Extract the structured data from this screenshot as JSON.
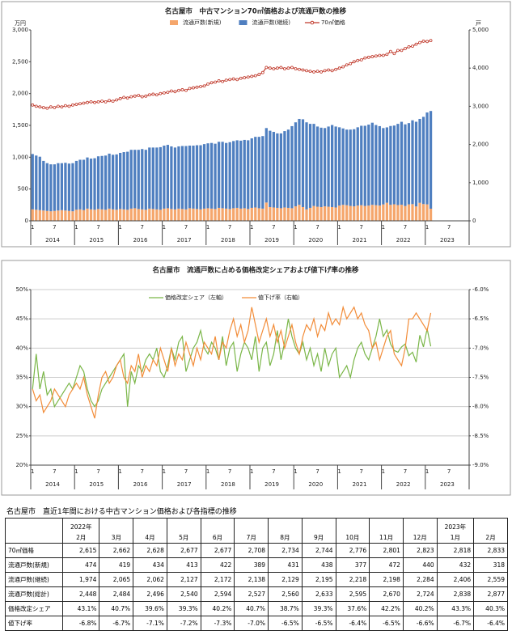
{
  "chart_data": [
    {
      "type": "bar",
      "title": "名古屋市　中古マンション70㎡価格および流通戸数の推移",
      "stacked": true,
      "grid": false,
      "y_label": "万円",
      "y2_label": "戸",
      "categories": [
        "1",
        null,
        null,
        null,
        null,
        null,
        "7",
        null,
        null,
        null,
        null,
        null,
        "1",
        null,
        null,
        null,
        null,
        null,
        "7",
        null,
        null,
        null,
        null,
        null,
        "1",
        null,
        null,
        null,
        null,
        null,
        "7",
        null,
        null,
        null,
        null,
        null,
        "1",
        null,
        null,
        null,
        null,
        null,
        "7",
        null,
        null,
        null,
        null,
        null,
        "1",
        null,
        null,
        null,
        null,
        null,
        "7",
        null,
        null,
        null,
        null,
        null,
        "1",
        null,
        null,
        null,
        null,
        null,
        "7",
        null,
        null,
        null,
        null,
        null,
        "1",
        null,
        null,
        null,
        null,
        null,
        "7",
        null,
        null,
        null,
        null,
        null,
        "1",
        null,
        null,
        null,
        null,
        null,
        "7",
        null,
        null,
        null,
        null,
        null,
        "1",
        null,
        null,
        null,
        null,
        null,
        "7",
        null,
        null,
        null,
        null,
        null,
        "1",
        null,
        null,
        null,
        null,
        null,
        "7",
        null,
        null,
        null,
        null,
        null
      ],
      "year_labels": [
        "2014",
        "2015",
        "2016",
        "2017",
        "2018",
        "2019",
        "2020",
        "2021",
        "2022",
        "2023"
      ],
      "ylim": [
        0,
        3000
      ],
      "yticks": [
        0,
        500,
        {
          "value": 1000,
          "label": "1,000"
        },
        {
          "value": 1500,
          "label": "1,500"
        },
        {
          "value": 2000,
          "label": "2,000"
        },
        {
          "value": 2500,
          "label": "2,500"
        },
        {
          "value": 3000,
          "label": "3,000"
        }
      ],
      "y2lim": [
        0,
        5000
      ],
      "y2ticks": [
        0,
        {
          "value": 1000,
          "label": "1,000"
        },
        {
          "value": 2000,
          "label": "2,000"
        },
        {
          "value": 3000,
          "label": "3,000"
        },
        {
          "value": 4000,
          "label": "4,000"
        },
        {
          "value": 5000,
          "label": "5,000"
        }
      ],
      "series": [
        {
          "name": "流通戸数(新規)",
          "type": "bar",
          "axis": "y2",
          "color": "#f5a66c",
          "values": [
            300,
            290,
            280,
            270,
            260,
            250,
            260,
            270,
            280,
            270,
            260,
            250,
            290,
            300,
            280,
            320,
            300,
            290,
            310,
            300,
            290,
            320,
            300,
            290,
            310,
            300,
            290,
            320,
            330,
            310,
            300,
            290,
            320,
            310,
            300,
            290,
            320,
            330,
            310,
            300,
            320,
            310,
            300,
            330,
            320,
            310,
            300,
            320,
            330,
            320,
            310,
            340,
            330,
            320,
            310,
            330,
            340,
            320,
            330,
            310,
            340,
            350,
            330,
            320,
            480,
            360,
            350,
            340,
            330,
            350,
            340,
            330,
            380,
            420,
            360,
            300,
            340,
            390,
            370,
            360,
            380,
            370,
            360,
            350,
            400,
            420,
            410,
            390,
            380,
            400,
            410,
            390,
            400,
            420,
            410,
            400,
            430,
            474,
            419,
            434,
            413,
            422,
            389,
            431,
            438,
            377,
            472,
            440,
            432,
            318,
            null,
            null,
            null,
            null,
            null,
            null,
            null,
            null,
            null,
            null
          ]
        },
        {
          "name": "流通戸数(継続)",
          "type": "bar",
          "axis": "y2",
          "color": "#4f7fc0",
          "values": [
            1450,
            1420,
            1400,
            1300,
            1250,
            1230,
            1220,
            1240,
            1230,
            1250,
            1240,
            1260,
            1280,
            1300,
            1320,
            1340,
            1330,
            1350,
            1380,
            1400,
            1420,
            1440,
            1430,
            1450,
            1470,
            1500,
            1520,
            1540,
            1530,
            1550,
            1580,
            1570,
            1600,
            1610,
            1620,
            1640,
            1650,
            1660,
            1640,
            1620,
            1630,
            1650,
            1660,
            1640,
            1650,
            1670,
            1680,
            1690,
            1700,
            1720,
            1710,
            1730,
            1740,
            1720,
            1750,
            1760,
            1770,
            1780,
            1790,
            1800,
            1820,
            1850,
            1870,
            1900,
            1950,
            2000,
            1980,
            1950,
            1960,
            2000,
            2050,
            2150,
            2200,
            2250,
            2300,
            2280,
            2200,
            2150,
            2100,
            2080,
            2050,
            2100,
            2150,
            2120,
            2050,
            2000,
            1980,
            2000,
            2020,
            2050,
            2080,
            2100,
            2120,
            2150,
            2100,
            2080,
            2000,
            1974,
            2065,
            2062,
            2127,
            2172,
            2138,
            2129,
            2195,
            2218,
            2198,
            2284,
            2406,
            2559,
            null,
            null,
            null,
            null,
            null,
            null,
            null,
            null,
            null,
            null
          ]
        },
        {
          "name": "70㎡価格",
          "type": "line",
          "axis": "y",
          "color": "#c0392b",
          "values": [
            1820,
            1800,
            1790,
            1780,
            1770,
            1790,
            1780,
            1800,
            1790,
            1810,
            1800,
            1820,
            1830,
            1840,
            1850,
            1860,
            1870,
            1860,
            1870,
            1880,
            1870,
            1890,
            1880,
            1900,
            1920,
            1940,
            1930,
            1950,
            1960,
            1970,
            1950,
            1960,
            1980,
            1990,
            1980,
            2000,
            2010,
            2020,
            2040,
            2030,
            2050,
            2060,
            2050,
            2080,
            2090,
            2100,
            2110,
            2120,
            2150,
            2170,
            2180,
            2200,
            2190,
            2210,
            2220,
            2230,
            2220,
            2240,
            2250,
            2260,
            2270,
            2280,
            2300,
            2330,
            2410,
            2400,
            2390,
            2400,
            2410,
            2390,
            2400,
            2410,
            2390,
            2380,
            2370,
            2360,
            2350,
            2340,
            2350,
            2340,
            2360,
            2370,
            2360,
            2380,
            2400,
            2420,
            2450,
            2470,
            2500,
            2520,
            2530,
            2560,
            2570,
            2580,
            2590,
            2600,
            2600,
            2615,
            2662,
            2628,
            2677,
            2677,
            2708,
            2734,
            2744,
            2776,
            2801,
            2823,
            2818,
            2833,
            null,
            null,
            null,
            null,
            null,
            null,
            null,
            null,
            null,
            null
          ]
        }
      ]
    },
    {
      "type": "line",
      "title": "名古屋市　流通戸数に占める価格改定シェアおよび値下げ率の推移",
      "grid": true,
      "categories": [
        "1",
        null,
        null,
        null,
        null,
        null,
        "7",
        null,
        null,
        null,
        null,
        null,
        "1",
        null,
        null,
        null,
        null,
        null,
        "7",
        null,
        null,
        null,
        null,
        null,
        "1",
        null,
        null,
        null,
        null,
        null,
        "7",
        null,
        null,
        null,
        null,
        null,
        "1",
        null,
        null,
        null,
        null,
        null,
        "7",
        null,
        null,
        null,
        null,
        null,
        "1",
        null,
        null,
        null,
        null,
        null,
        "7",
        null,
        null,
        null,
        null,
        null,
        "1",
        null,
        null,
        null,
        null,
        null,
        "7",
        null,
        null,
        null,
        null,
        null,
        "1",
        null,
        null,
        null,
        null,
        null,
        "7",
        null,
        null,
        null,
        null,
        null,
        "1",
        null,
        null,
        null,
        null,
        null,
        "7",
        null,
        null,
        null,
        null,
        null,
        "1",
        null,
        null,
        null,
        null,
        null,
        "7",
        null,
        null,
        null,
        null,
        null,
        "1",
        null,
        null,
        null,
        null,
        null,
        "7",
        null,
        null,
        null,
        null,
        null
      ],
      "year_labels": [
        "2014",
        "2015",
        "2016",
        "2017",
        "2018",
        "2019",
        "2020",
        "2021",
        "2022",
        "2023"
      ],
      "ylim": [
        20,
        50
      ],
      "yticks": [
        {
          "value": 20,
          "label": "20%"
        },
        {
          "value": 25,
          "label": "25%"
        },
        {
          "value": 30,
          "label": "30%"
        },
        {
          "value": 35,
          "label": "35%"
        },
        {
          "value": 40,
          "label": "40%"
        },
        {
          "value": 45,
          "label": "45%"
        },
        {
          "value": 50,
          "label": "50%"
        }
      ],
      "y2lim": [
        -9,
        -6
      ],
      "y2ticks": [
        {
          "value": -9,
          "label": "-9.0%"
        },
        {
          "value": -8.5,
          "label": "-8.5%"
        },
        {
          "value": -8,
          "label": "-8.0%"
        },
        {
          "value": -7.5,
          "label": "-7.5%"
        },
        {
          "value": -7,
          "label": "-7.0%"
        },
        {
          "value": -6.5,
          "label": "-6.5%"
        },
        {
          "value": -6,
          "label": "-6.0%"
        }
      ],
      "series": [
        {
          "name": "価格改定シェア（左軸）",
          "axis": "y",
          "color": "#7ab648",
          "values": [
            33,
            39,
            33,
            36,
            32,
            33,
            30,
            31,
            32,
            33,
            34,
            33,
            35,
            37,
            36,
            33,
            31,
            30,
            31,
            33,
            34,
            35,
            36,
            37,
            38,
            39,
            30,
            36,
            34,
            37,
            36,
            38,
            39,
            38,
            40,
            36,
            35,
            37,
            40,
            38,
            41,
            42,
            36,
            38,
            40,
            41,
            43,
            40,
            39,
            41,
            40,
            38,
            42,
            37,
            40,
            41,
            36,
            39,
            41,
            40,
            38,
            42,
            36,
            40,
            41,
            37,
            39,
            43,
            38,
            41,
            45,
            42,
            40,
            39,
            41,
            38,
            40,
            37,
            39,
            36,
            40,
            37,
            39,
            40,
            35,
            36,
            37,
            35,
            38,
            40,
            41,
            39,
            38,
            40,
            42,
            45,
            42,
            43.1,
            40.7,
            39.6,
            39.3,
            40.2,
            40.7,
            38.7,
            39.3,
            37.6,
            42.2,
            40.2,
            43.3,
            40.3,
            null,
            null,
            null,
            null,
            null,
            null,
            null,
            null,
            null,
            null
          ]
        },
        {
          "name": "値下げ率（右軸）",
          "axis": "y2",
          "color": "#f28c38",
          "values": [
            -7.7,
            -7.9,
            -7.8,
            -8.1,
            -8.0,
            -7.9,
            -7.7,
            -7.8,
            -7.9,
            -8.0,
            -7.8,
            -7.7,
            -7.6,
            -7.7,
            -7.5,
            -7.8,
            -8.0,
            -8.2,
            -7.8,
            -7.5,
            -7.4,
            -7.6,
            -7.5,
            -7.3,
            -7.2,
            -7.5,
            -7.6,
            -7.3,
            -7.4,
            -7.1,
            -7.5,
            -7.3,
            -7.4,
            -7.2,
            -7.3,
            -7.0,
            -7.2,
            -7.4,
            -7.0,
            -7.3,
            -7.1,
            -7.2,
            -6.9,
            -7.1,
            -7.3,
            -7.0,
            -7.2,
            -6.9,
            -7.0,
            -7.1,
            -6.8,
            -7.2,
            -6.9,
            -7.0,
            -6.7,
            -6.5,
            -6.8,
            -6.6,
            -6.9,
            -6.7,
            -6.3,
            -6.6,
            -6.9,
            -6.7,
            -6.5,
            -6.8,
            -6.6,
            -6.9,
            -6.7,
            -7.0,
            -6.8,
            -6.6,
            -6.9,
            -7.1,
            -6.8,
            -6.6,
            -6.7,
            -6.5,
            -6.8,
            -6.6,
            -6.7,
            -6.4,
            -6.6,
            -6.5,
            -6.6,
            -6.3,
            -6.5,
            -6.4,
            -6.3,
            -6.5,
            -6.4,
            -6.6,
            -6.7,
            -7.0,
            -6.9,
            -7.2,
            -7.0,
            -6.8,
            -6.7,
            -7.1,
            -7.2,
            -7.3,
            -7.0,
            -6.5,
            -6.5,
            -6.4,
            -6.5,
            -6.6,
            -6.7,
            -6.4,
            null,
            null,
            null,
            null,
            null,
            null,
            null,
            null,
            null,
            null
          ]
        }
      ]
    }
  ],
  "table": {
    "title": "名古屋市　直近1年間における中古マンション価格および各指標の推移",
    "columns": [
      {
        "year": "2022年",
        "month": "2月"
      },
      {
        "month": "3月"
      },
      {
        "month": "4月"
      },
      {
        "month": "5月"
      },
      {
        "month": "6月"
      },
      {
        "month": "7月"
      },
      {
        "month": "8月"
      },
      {
        "month": "9月"
      },
      {
        "month": "10月"
      },
      {
        "month": "11月"
      },
      {
        "month": "12月"
      },
      {
        "year": "2023年",
        "month": "1月"
      },
      {
        "month": "2月"
      }
    ],
    "rows": [
      {
        "label": "70㎡価格",
        "cells": [
          "2,615",
          "2,662",
          "2,628",
          "2,677",
          "2,677",
          "2,708",
          "2,734",
          "2,744",
          "2,776",
          "2,801",
          "2,823",
          "2,818",
          "2,833"
        ]
      },
      {
        "label": "流通戸数(新規)",
        "cells": [
          "474",
          "419",
          "434",
          "413",
          "422",
          "389",
          "431",
          "438",
          "377",
          "472",
          "440",
          "432",
          "318"
        ]
      },
      {
        "label": "流通戸数(継続)",
        "cells": [
          "1,974",
          "2,065",
          "2,062",
          "2,127",
          "2,172",
          "2,138",
          "2,129",
          "2,195",
          "2,218",
          "2,198",
          "2,284",
          "2,406",
          "2,559"
        ]
      },
      {
        "label": "流通戸数(総計)",
        "cells": [
          "2,448",
          "2,484",
          "2,496",
          "2,540",
          "2,594",
          "2,527",
          "2,560",
          "2,633",
          "2,595",
          "2,670",
          "2,724",
          "2,838",
          "2,877"
        ]
      },
      {
        "label": "価格改定シェア",
        "cells": [
          "43.1%",
          "40.7%",
          "39.6%",
          "39.3%",
          "40.2%",
          "40.7%",
          "38.7%",
          "39.3%",
          "37.6%",
          "42.2%",
          "40.2%",
          "43.3%",
          "40.3%"
        ]
      },
      {
        "label": "値下げ率",
        "cells": [
          "-6.8%",
          "-6.7%",
          "-7.1%",
          "-7.2%",
          "-7.3%",
          "-7.0%",
          "-6.5%",
          "-6.5%",
          "-6.4%",
          "-6.5%",
          "-6.6%",
          "-6.7%",
          "-6.4%"
        ]
      }
    ]
  }
}
